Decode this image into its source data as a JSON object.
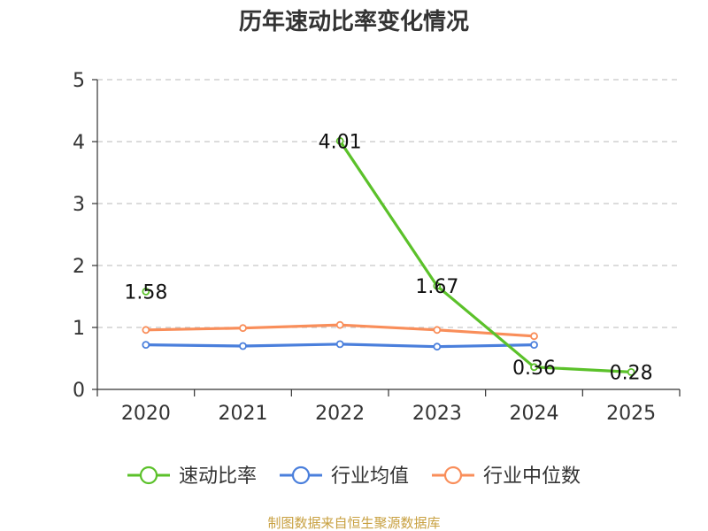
{
  "chart_data": {
    "type": "line",
    "title": "历年速动比率变化情况",
    "categories": [
      "2020",
      "2021",
      "2022",
      "2023",
      "2024",
      "2025"
    ],
    "ylim": [
      0,
      5
    ],
    "yticks": [
      0,
      1,
      2,
      3,
      4,
      5
    ],
    "grid": "horizontal-dashed",
    "legend_position": "bottom-center",
    "series": [
      {
        "name": "速动比率",
        "color": "#5bc12a",
        "values": [
          1.58,
          null,
          4.01,
          1.67,
          0.36,
          0.28
        ],
        "show_labels": true
      },
      {
        "name": "行业均值",
        "color": "#4a7fdc",
        "values": [
          0.72,
          0.7,
          0.73,
          0.69,
          0.72,
          null
        ],
        "show_labels": false
      },
      {
        "name": "行业中位数",
        "color": "#f98e5a",
        "values": [
          0.96,
          0.99,
          1.04,
          0.96,
          0.86,
          null
        ],
        "show_labels": false
      }
    ]
  },
  "source": {
    "text": "制图数据来自恒生聚源数据库",
    "color": "#c8a040"
  }
}
